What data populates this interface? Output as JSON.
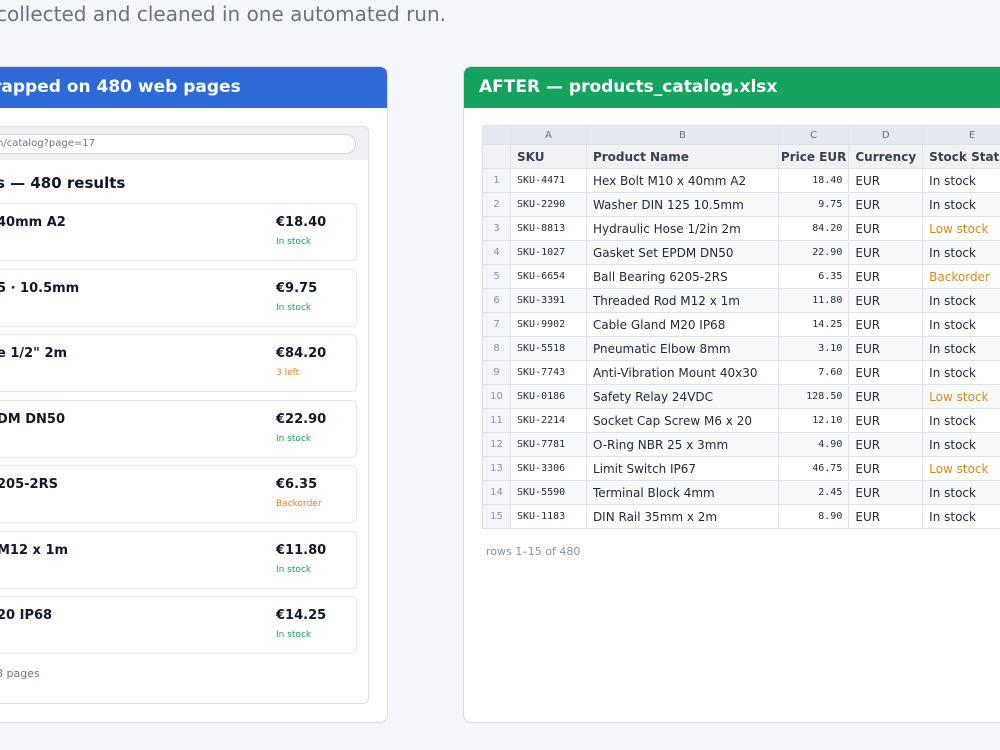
{
  "subtitle": "collected and cleaned in one automated run.",
  "colors": {
    "accent_before": "#2d6ad8",
    "accent_after": "#16a35f",
    "in_stock": "#16a35f",
    "warning": "#d98a1c"
  },
  "before": {
    "header": "rapped on 480 web pages",
    "url": "n/catalog?page=17",
    "results_title": "s — 480 results",
    "footer": "8 pages",
    "cards": [
      {
        "name": "40mm A2",
        "price": "€18.40",
        "status": "In stock",
        "status_kind": "in"
      },
      {
        "name": "5 · 10.5mm",
        "price": "€9.75",
        "status": "In stock",
        "status_kind": "in"
      },
      {
        "name": "e 1/2\" 2m",
        "price": "€84.20",
        "status": "3 left",
        "status_kind": "warn"
      },
      {
        "name": "DM DN50",
        "price": "€22.90",
        "status": "In stock",
        "status_kind": "in"
      },
      {
        "name": "205-2RS",
        "price": "€6.35",
        "status": "Backorder",
        "status_kind": "warn"
      },
      {
        "name": "M12 x 1m",
        "price": "€11.80",
        "status": "In stock",
        "status_kind": "in"
      },
      {
        "name": "20 IP68",
        "price": "€14.25",
        "status": "In stock",
        "status_kind": "in"
      }
    ]
  },
  "after": {
    "header": "AFTER — products_catalog.xlsx",
    "column_letters": [
      "A",
      "B",
      "C",
      "D",
      "E"
    ],
    "headers": [
      "SKU",
      "Product Name",
      "Price EUR",
      "Currency",
      "Stock Status"
    ],
    "rows": [
      {
        "n": "1",
        "sku": "SKU-4471",
        "name": "Hex Bolt M10 x 40mm A2",
        "price": "18.40",
        "cur": "EUR",
        "stock": "In stock",
        "stock_kind": "normal"
      },
      {
        "n": "2",
        "sku": "SKU-2290",
        "name": "Washer DIN 125 10.5mm",
        "price": "9.75",
        "cur": "EUR",
        "stock": "In stock",
        "stock_kind": "normal"
      },
      {
        "n": "3",
        "sku": "SKU-8813",
        "name": "Hydraulic Hose 1/2in 2m",
        "price": "84.20",
        "cur": "EUR",
        "stock": "Low stock",
        "stock_kind": "warn"
      },
      {
        "n": "4",
        "sku": "SKU-1027",
        "name": "Gasket Set EPDM DN50",
        "price": "22.90",
        "cur": "EUR",
        "stock": "In stock",
        "stock_kind": "normal"
      },
      {
        "n": "5",
        "sku": "SKU-6654",
        "name": "Ball Bearing 6205-2RS",
        "price": "6.35",
        "cur": "EUR",
        "stock": "Backorder",
        "stock_kind": "warn"
      },
      {
        "n": "6",
        "sku": "SKU-3391",
        "name": "Threaded Rod M12 x 1m",
        "price": "11.80",
        "cur": "EUR",
        "stock": "In stock",
        "stock_kind": "normal"
      },
      {
        "n": "7",
        "sku": "SKU-9902",
        "name": "Cable Gland M20 IP68",
        "price": "14.25",
        "cur": "EUR",
        "stock": "In stock",
        "stock_kind": "normal"
      },
      {
        "n": "8",
        "sku": "SKU-5518",
        "name": "Pneumatic Elbow 8mm",
        "price": "3.10",
        "cur": "EUR",
        "stock": "In stock",
        "stock_kind": "normal"
      },
      {
        "n": "9",
        "sku": "SKU-7743",
        "name": "Anti-Vibration Mount 40x30",
        "price": "7.60",
        "cur": "EUR",
        "stock": "In stock",
        "stock_kind": "normal"
      },
      {
        "n": "10",
        "sku": "SKU-0186",
        "name": "Safety Relay 24VDC",
        "price": "128.50",
        "cur": "EUR",
        "stock": "Low stock",
        "stock_kind": "warn"
      },
      {
        "n": "11",
        "sku": "SKU-2214",
        "name": "Socket Cap Screw M6 x 20",
        "price": "12.10",
        "cur": "EUR",
        "stock": "In stock",
        "stock_kind": "normal"
      },
      {
        "n": "12",
        "sku": "SKU-7781",
        "name": "O-Ring NBR 25 x 3mm",
        "price": "4.90",
        "cur": "EUR",
        "stock": "In stock",
        "stock_kind": "normal"
      },
      {
        "n": "13",
        "sku": "SKU-3306",
        "name": "Limit Switch IP67",
        "price": "46.75",
        "cur": "EUR",
        "stock": "Low stock",
        "stock_kind": "warn"
      },
      {
        "n": "14",
        "sku": "SKU-5590",
        "name": "Terminal Block 4mm",
        "price": "2.45",
        "cur": "EUR",
        "stock": "In stock",
        "stock_kind": "normal"
      },
      {
        "n": "15",
        "sku": "SKU-1183",
        "name": "DIN Rail 35mm x 2m",
        "price": "8.90",
        "cur": "EUR",
        "stock": "In stock",
        "stock_kind": "normal"
      }
    ],
    "footer": "rows 1–15 of 480"
  }
}
